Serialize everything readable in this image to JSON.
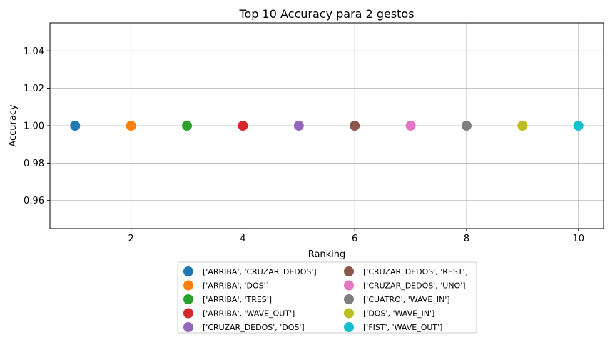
{
  "chart_data": {
    "type": "scatter",
    "title": "Top 10 Accuracy para 2 gestos",
    "xlabel": "Ranking",
    "ylabel": "Accuracy",
    "xlim": [
      0.55,
      10.45
    ],
    "ylim": [
      0.945,
      1.055
    ],
    "xticks": [
      2,
      4,
      6,
      8,
      10
    ],
    "yticks": [
      0.96,
      0.98,
      1.0,
      1.02,
      1.04
    ],
    "xtick_labels": [
      "2",
      "4",
      "6",
      "8",
      "10"
    ],
    "ytick_labels": [
      "0.96",
      "0.98",
      "1.00",
      "1.02",
      "1.04"
    ],
    "grid": true,
    "legend_position": "below the axes, two columns",
    "series": [
      {
        "name": "['ARRIBA', 'CRUZAR_DEDOS']",
        "x": 1,
        "y": 1.0,
        "color": "#1f77b4"
      },
      {
        "name": "['ARRIBA', 'DOS']",
        "x": 2,
        "y": 1.0,
        "color": "#ff7f0e"
      },
      {
        "name": "['ARRIBA', 'TRES']",
        "x": 3,
        "y": 1.0,
        "color": "#2ca02c"
      },
      {
        "name": "['ARRIBA', 'WAVE_OUT']",
        "x": 4,
        "y": 1.0,
        "color": "#d62728"
      },
      {
        "name": "['CRUZAR_DEDOS', 'DOS']",
        "x": 5,
        "y": 1.0,
        "color": "#9467bd"
      },
      {
        "name": "['CRUZAR_DEDOS', 'REST']",
        "x": 6,
        "y": 1.0,
        "color": "#8c564b"
      },
      {
        "name": "['CRUZAR_DEDOS', 'UNO']",
        "x": 7,
        "y": 1.0,
        "color": "#e377c2"
      },
      {
        "name": "['CUATRO', 'WAVE_IN']",
        "x": 8,
        "y": 1.0,
        "color": "#7f7f7f"
      },
      {
        "name": "['DOS', 'WAVE_IN']",
        "x": 9,
        "y": 1.0,
        "color": "#bcbd22"
      },
      {
        "name": "['FIST', 'WAVE_OUT']",
        "x": 10,
        "y": 1.0,
        "color": "#17becf"
      }
    ]
  }
}
